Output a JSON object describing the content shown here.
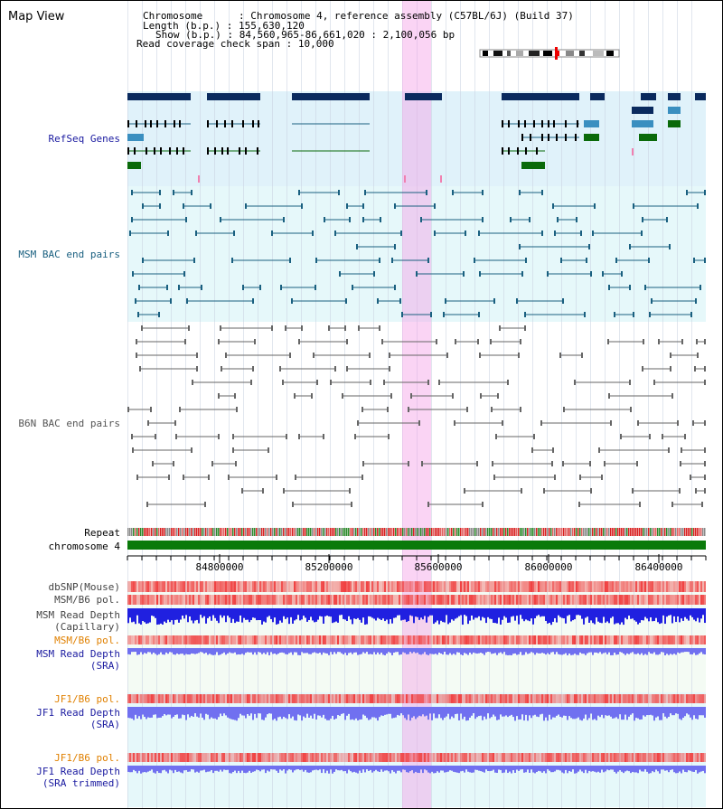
{
  "title": "Map View",
  "info": {
    "chromosome_label": "Chromosome",
    "chromosome_value": "Chromosome 4, reference assembly (C57BL/6J) (Build 37)",
    "length_label": "Length (b.p.)",
    "length_value": "155,630,120",
    "show_label": "Show (b.p.)",
    "show_value": "84,560,965-86,661,020 : 2,100,056 bp",
    "read_check_label": "Read coverage check span",
    "read_check_value": "10,000"
  },
  "tracks": {
    "refseq": "RefSeq Genes",
    "msm_bac": "MSM BAC end pairs",
    "b6n_bac": "B6N BAC end pairs",
    "repeat": "Repeat",
    "chromosome": "chromosome 4",
    "dbsnp": "dbSNP(Mouse)",
    "msm_b6_pol_1": "MSM/B6 pol.",
    "msm_depth_cap_1": "MSM Read Depth",
    "msm_depth_cap_2": "(Capillary)",
    "msm_b6_pol_2": "MSM/B6 pol.",
    "msm_depth_sra_1": "MSM Read Depth",
    "msm_depth_sra_2": "(SRA)",
    "jf1_b6_pol_1": "JF1/B6 pol.",
    "jf1_depth_sra_1": "JF1 Read Depth",
    "jf1_depth_sra_2": "(SRA)",
    "jf1_b6_pol_2": "JF1/B6 pol.",
    "jf1_depth_trim_1": "JF1 Read Depth",
    "jf1_depth_trim_2": "(SRA trimmed)"
  },
  "axis": {
    "ticks": [
      "84800000",
      "85200000",
      "85600000",
      "86000000",
      "86400000"
    ]
  },
  "colors": {
    "refseq_dark": "#0a2a5e",
    "refseq_mid": "#3a8fc0",
    "refseq_green": "#0a6a0a",
    "msm_line": "#1a6080",
    "b6n_line": "#666666",
    "chrom_green": "#0a7a0a",
    "snp_red": "#f04040",
    "depth_blue": "#2020e0",
    "depth_light": "#7070f0",
    "label_blue": "#1a1aa0",
    "label_orange": "#e08000"
  }
}
